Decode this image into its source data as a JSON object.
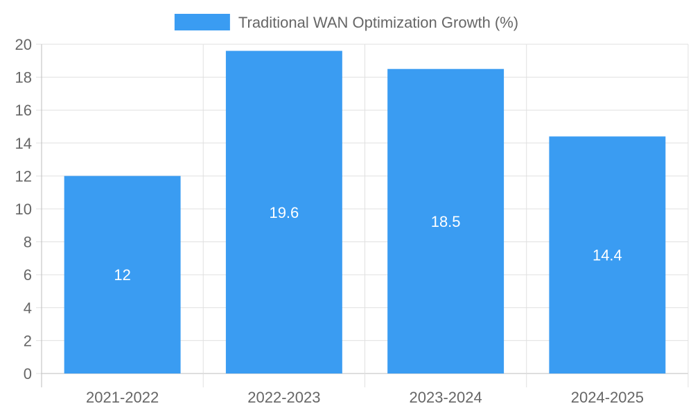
{
  "chart_data": {
    "type": "bar",
    "title": "",
    "xlabel": "",
    "ylabel": "",
    "categories": [
      "2021-2022",
      "2022-2023",
      "2023-2024",
      "2024-2025"
    ],
    "series": [
      {
        "name": "Traditional WAN Optimization Growth (%)",
        "values": [
          12,
          19.6,
          18.5,
          14.4
        ],
        "color": "#3a9cf2"
      }
    ],
    "ylim": [
      0,
      20
    ],
    "yticks": [
      0,
      2,
      4,
      6,
      8,
      10,
      12,
      14,
      16,
      18,
      20
    ],
    "yticks_text": [
      "0",
      "2",
      "4",
      "6",
      "8",
      "10",
      "12",
      "14",
      "16",
      "18",
      "20"
    ],
    "data_labels": [
      "12",
      "19.6",
      "18.5",
      "14.4"
    ],
    "grid": true,
    "legend_position": "top-center",
    "gridline_color": "#e0e0e0",
    "axis_color": "#bdbdbd",
    "text_color": "#666666"
  }
}
